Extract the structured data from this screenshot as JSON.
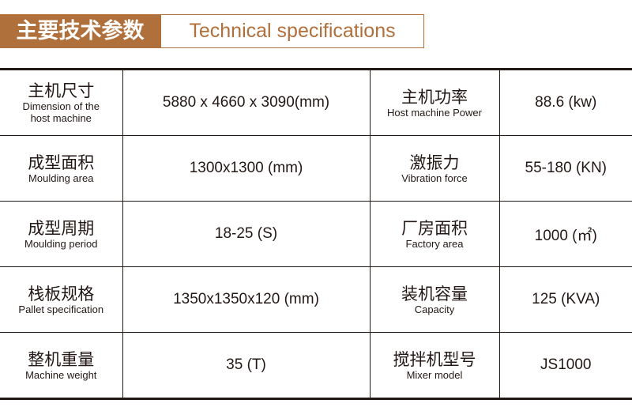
{
  "header": {
    "title_cn": "主要技术参数",
    "title_en": "Technical specifications",
    "accent": "#b0703c"
  },
  "rows": [
    [
      {
        "cn": "主机尺寸",
        "en": "Dimension of the host machine",
        "value": "5880 x 4660 x 3090(mm)"
      },
      {
        "cn": "主机功率",
        "en": "Host machine Power",
        "value": "88.6 (kw)"
      }
    ],
    [
      {
        "cn": "成型面积",
        "en": "Moulding area",
        "value": "1300x1300 (mm)"
      },
      {
        "cn": "激振力",
        "en": "Vibration force",
        "value": "55-180 (KN)"
      }
    ],
    [
      {
        "cn": "成型周期",
        "en": "Moulding period",
        "value": "18-25 (S)"
      },
      {
        "cn": "厂房面积",
        "en": "Factory area",
        "value": "1000 (㎡)"
      }
    ],
    [
      {
        "cn": "栈板规格",
        "en": "Pallet specification",
        "value": "1350x1350x120 (mm)"
      },
      {
        "cn": "装机容量",
        "en": "Capacity",
        "value": "125 (KVA)"
      }
    ],
    [
      {
        "cn": "整机重量",
        "en": "Machine weight",
        "value": "35 (T)"
      },
      {
        "cn": "搅拌机型号",
        "en": "Mixer model",
        "value": "JS1000"
      }
    ]
  ]
}
